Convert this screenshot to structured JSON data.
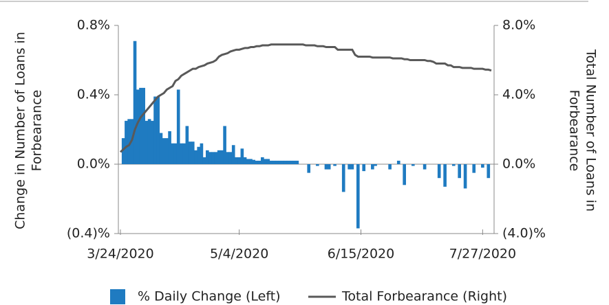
{
  "chart_data": {
    "type": "bar_line",
    "y_label": [
      "Change in Number of Loans in",
      "Forbearance"
    ],
    "y2_label": [
      "Total Number of Loans in",
      "Forbearance"
    ],
    "categories": [
      "3/24/2020",
      null,
      null,
      null,
      null,
      null,
      null,
      null,
      null,
      null,
      null,
      null,
      null,
      null,
      null,
      null,
      null,
      null,
      null,
      null,
      null,
      null,
      null,
      null,
      null,
      null,
      null,
      null,
      null,
      null,
      null,
      null,
      null,
      null,
      null,
      null,
      null,
      null,
      null,
      null,
      null,
      "5/4/2020",
      null,
      null,
      null,
      null,
      null,
      null,
      null,
      null,
      null,
      null,
      null,
      null,
      null,
      null,
      null,
      null,
      null,
      null,
      null,
      null,
      null,
      null,
      null,
      null,
      null,
      null,
      null,
      null,
      null,
      null,
      null,
      null,
      null,
      null,
      null,
      null,
      null,
      null,
      null,
      null,
      null,
      "6/15/2020",
      null,
      null,
      null,
      null,
      null,
      null,
      null,
      null,
      null,
      null,
      null,
      null,
      null,
      null,
      null,
      null,
      null,
      null,
      null,
      null,
      null,
      null,
      null,
      null,
      null,
      null,
      null,
      null,
      null,
      null,
      null,
      null,
      null,
      null,
      null,
      null,
      null,
      null,
      null,
      null,
      null,
      "7/27/2020",
      null,
      null,
      null
    ],
    "series": [
      {
        "name": "% Daily Change (Left)",
        "color": "#1f7bc1",
        "kind": "bar",
        "axis": "y",
        "values": [
          null,
          0.15,
          0.25,
          0.26,
          0.26,
          0.71,
          0.43,
          0.44,
          0.44,
          0.25,
          0.26,
          0.25,
          0.39,
          0.39,
          0.18,
          0.15,
          0.15,
          0.19,
          0.12,
          0.12,
          0.43,
          0.12,
          0.12,
          0.22,
          0.13,
          0.13,
          0.08,
          0.1,
          0.12,
          0.04,
          0.08,
          0.07,
          0.07,
          0.07,
          0.08,
          0.08,
          0.22,
          0.07,
          0.07,
          0.11,
          0.04,
          0.04,
          0.09,
          0.04,
          0.03,
          0.03,
          0.025,
          0.02,
          0.02,
          0.04,
          0.03,
          0.03,
          0.02,
          0.02,
          0.02,
          0.02,
          0.02,
          0.02,
          0.02,
          0.02,
          0.02,
          0.02,
          null,
          null,
          null,
          -0.05,
          null,
          null,
          -0.01,
          null,
          null,
          -0.03,
          -0.03,
          null,
          -0.01,
          null,
          null,
          -0.16,
          null,
          -0.03,
          -0.03,
          null,
          -0.37,
          null,
          -0.04,
          null,
          null,
          -0.03,
          -0.01,
          null,
          null,
          null,
          null,
          -0.03,
          null,
          null,
          0.02,
          null,
          -0.12,
          null,
          null,
          -0.01,
          null,
          null,
          null,
          -0.03,
          null,
          null,
          null,
          null,
          -0.08,
          null,
          -0.13,
          null,
          null,
          -0.01,
          null,
          -0.08,
          null,
          -0.14,
          null,
          null,
          -0.05,
          null,
          null,
          -0.02,
          null,
          -0.08,
          null
        ]
      },
      {
        "name": "Total Forbearance (Right)",
        "color": "#595959",
        "kind": "line",
        "axis": "y2",
        "values": [
          0.7,
          0.85,
          1.0,
          1.1,
          1.4,
          2.0,
          2.4,
          2.7,
          2.9,
          3.1,
          3.3,
          3.5,
          3.7,
          3.9,
          4.0,
          4.1,
          4.3,
          4.4,
          4.5,
          4.8,
          4.9,
          5.1,
          5.2,
          5.3,
          5.4,
          5.5,
          5.5,
          5.6,
          5.65,
          5.7,
          5.8,
          5.85,
          5.9,
          6.0,
          6.2,
          6.3,
          6.35,
          6.4,
          6.5,
          6.55,
          6.6,
          6.6,
          6.65,
          6.7,
          6.7,
          6.75,
          6.75,
          6.8,
          6.8,
          6.85,
          6.85,
          6.85,
          6.9,
          6.9,
          6.9,
          6.9,
          6.9,
          6.9,
          6.9,
          6.9,
          6.9,
          6.9,
          6.9,
          6.9,
          6.85,
          6.85,
          6.85,
          6.85,
          6.8,
          6.8,
          6.8,
          6.75,
          6.75,
          6.75,
          6.75,
          6.6,
          6.6,
          6.6,
          6.6,
          6.6,
          6.6,
          6.3,
          6.2,
          6.2,
          6.2,
          6.2,
          6.2,
          6.15,
          6.15,
          6.15,
          6.15,
          6.15,
          6.15,
          6.15,
          6.1,
          6.1,
          6.1,
          6.1,
          6.05,
          6.05,
          6.0,
          6.0,
          6.0,
          6.0,
          6.0,
          6.0,
          5.95,
          5.95,
          5.9,
          5.8,
          5.8,
          5.8,
          5.8,
          5.7,
          5.7,
          5.6,
          5.6,
          5.6,
          5.55,
          5.55,
          5.55,
          5.55,
          5.5,
          5.5,
          5.5,
          5.5,
          5.45,
          5.45,
          5.4
        ]
      }
    ],
    "ylim": [
      -0.4,
      0.8
    ],
    "yticks": [
      {
        "value": -0.4,
        "label": "(0.4)%"
      },
      {
        "value": 0,
        "label": "0.0%"
      },
      {
        "value": 0.4,
        "label": "0.4%"
      },
      {
        "value": 0.8,
        "label": "0.8%"
      }
    ],
    "y2lim": [
      -4,
      8
    ],
    "y2ticks": [
      {
        "value": -4,
        "label": "(4.0)%"
      },
      {
        "value": 0,
        "label": "0.0%"
      },
      {
        "value": 4,
        "label": "4.0%"
      },
      {
        "value": 8,
        "label": "8.0%"
      }
    ]
  }
}
